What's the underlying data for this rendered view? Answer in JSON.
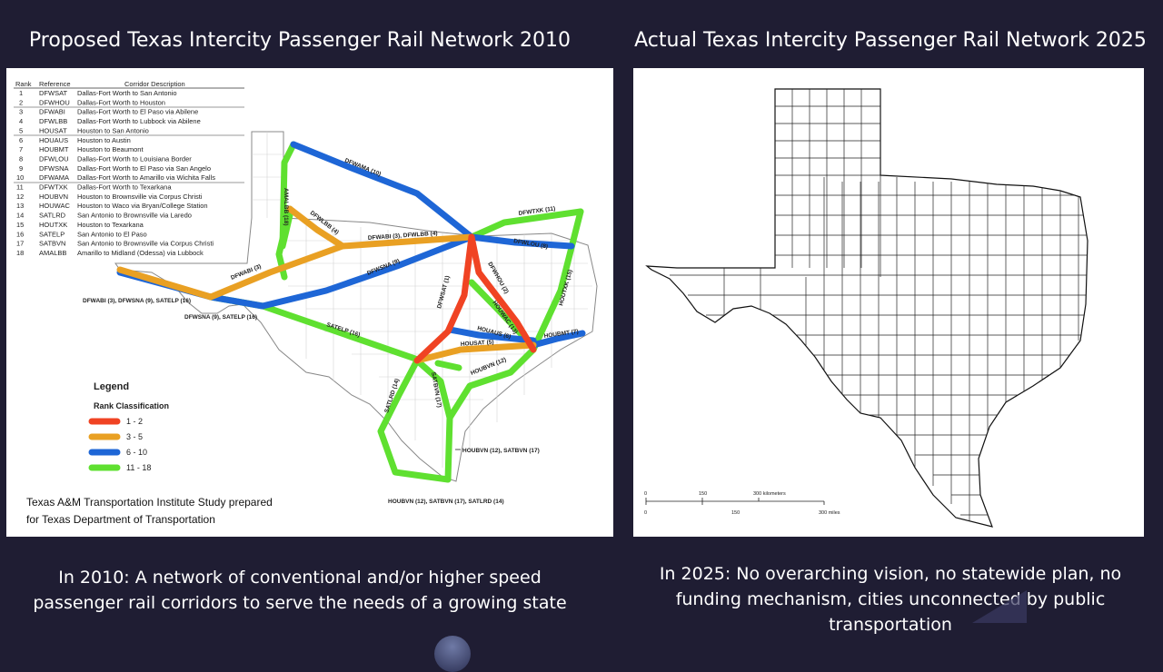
{
  "left_title": "Proposed Texas Intercity Passenger Rail Network 2010",
  "right_title": "Actual Texas Intercity Passenger Rail Network 2025",
  "left_caption": "In 2010: A network of conventional and/or higher speed passenger rail corridors to serve the needs of a growing state",
  "right_caption": "In 2025: No overarching vision, no statewide plan, no funding mechanism, cities unconnected by public transportation",
  "table": {
    "headers": {
      "rank": "Rank",
      "reference": "Reference",
      "description": "Corridor Description"
    },
    "rows": [
      {
        "rank": "1",
        "ref": "DFWSAT",
        "desc": "Dallas-Fort Worth to San Antonio"
      },
      {
        "rank": "2",
        "ref": "DFWHOU",
        "desc": "Dallas-Fort Worth to Houston"
      },
      {
        "rank": "3",
        "ref": "DFWABI",
        "desc": "Dallas-Fort Worth to El Paso via Abilene"
      },
      {
        "rank": "4",
        "ref": "DFWLBB",
        "desc": "Dallas-Fort Worth to Lubbock via Abilene"
      },
      {
        "rank": "5",
        "ref": "HOUSAT",
        "desc": "Houston to San Antonio"
      },
      {
        "rank": "6",
        "ref": "HOUAUS",
        "desc": "Houston to Austin"
      },
      {
        "rank": "7",
        "ref": "HOUBMT",
        "desc": "Houston to Beaumont"
      },
      {
        "rank": "8",
        "ref": "DFWLOU",
        "desc": "Dallas-Fort Worth to Louisiana Border"
      },
      {
        "rank": "9",
        "ref": "DFWSNA",
        "desc": "Dallas-Fort Worth to El Paso via San Angelo"
      },
      {
        "rank": "10",
        "ref": "DFWAMA",
        "desc": "Dallas-Fort Worth to Amarillo via Wichita Falls"
      },
      {
        "rank": "11",
        "ref": "DFWTXK",
        "desc": "Dallas-Fort Worth to Texarkana"
      },
      {
        "rank": "12",
        "ref": "HOUBVN",
        "desc": "Houston to Brownsville via Corpus Christi"
      },
      {
        "rank": "13",
        "ref": "HOUWAC",
        "desc": "Houston to Waco via Bryan/College Station"
      },
      {
        "rank": "14",
        "ref": "SATLRD",
        "desc": "San Antonio to Brownsville via Laredo"
      },
      {
        "rank": "15",
        "ref": "HOUTXK",
        "desc": "Houston to Texarkana"
      },
      {
        "rank": "16",
        "ref": "SATELP",
        "desc": "San Antonio to El Paso"
      },
      {
        "rank": "17",
        "ref": "SATBVN",
        "desc": "San Antonio to Brownsville via Corpus Christi"
      },
      {
        "rank": "18",
        "ref": "AMALBB",
        "desc": "Amarillo to Midland (Odessa) via Lubbock"
      }
    ]
  },
  "legend": {
    "title": "Legend",
    "subtitle": "Rank Classification",
    "items": [
      {
        "label": "1 - 2",
        "color": "#f04323"
      },
      {
        "label": "3 - 5",
        "color": "#e9a023"
      },
      {
        "label": "6 - 10",
        "color": "#1e66d6"
      },
      {
        "label": "11 - 18",
        "color": "#5fe030"
      }
    ]
  },
  "route_labels": {
    "dfwama": "DFWAMA (10)",
    "amalbb": "AMALBB (18)",
    "dfwlbb": "DFWLBB (4)",
    "dfwabi_lbb": "DFWABI (3), DFWLBB (4)",
    "dfwtxk": "DFWTXK (11)",
    "dfwlou": "DFWLOU (8)",
    "dfwabi": "DFWABI (3)",
    "dfwsna": "DFWSNA (9)",
    "elpaso_a": "DFWABI (3), DFWSNA (9), SATELP (16)",
    "elpaso_b": "DFWSNA (9), SATELP (16)",
    "satelp": "SATELP (16)",
    "dfwsat": "DFWSAT (1)",
    "dfwhou": "DFWHOU (2)",
    "houwac": "HOUWAC (13)",
    "houtxk": "HOUTXK (15)",
    "houaus": "HOUAUS (6)",
    "housat": "HOUSAT (5)",
    "houbmt": "HOUBMT (7)",
    "houbvn": "HOUBVN (12)",
    "satlrd": "SATLRD (14)",
    "satbvn": "SATBVN (17)",
    "coast": "HOUBVN (12), SATBVN (17)",
    "south": "HOUBVN (12), SATBVN (17), SATLRD (14)"
  },
  "source_note": {
    "line1": "Texas A&M Transportation Institute Study prepared",
    "line2": "for Texas Department of Transportation"
  },
  "scale_bar": {
    "km_labels": [
      "0",
      "150",
      "300 kilometers"
    ],
    "mi_labels": [
      "0",
      "150",
      "300 miles"
    ]
  }
}
